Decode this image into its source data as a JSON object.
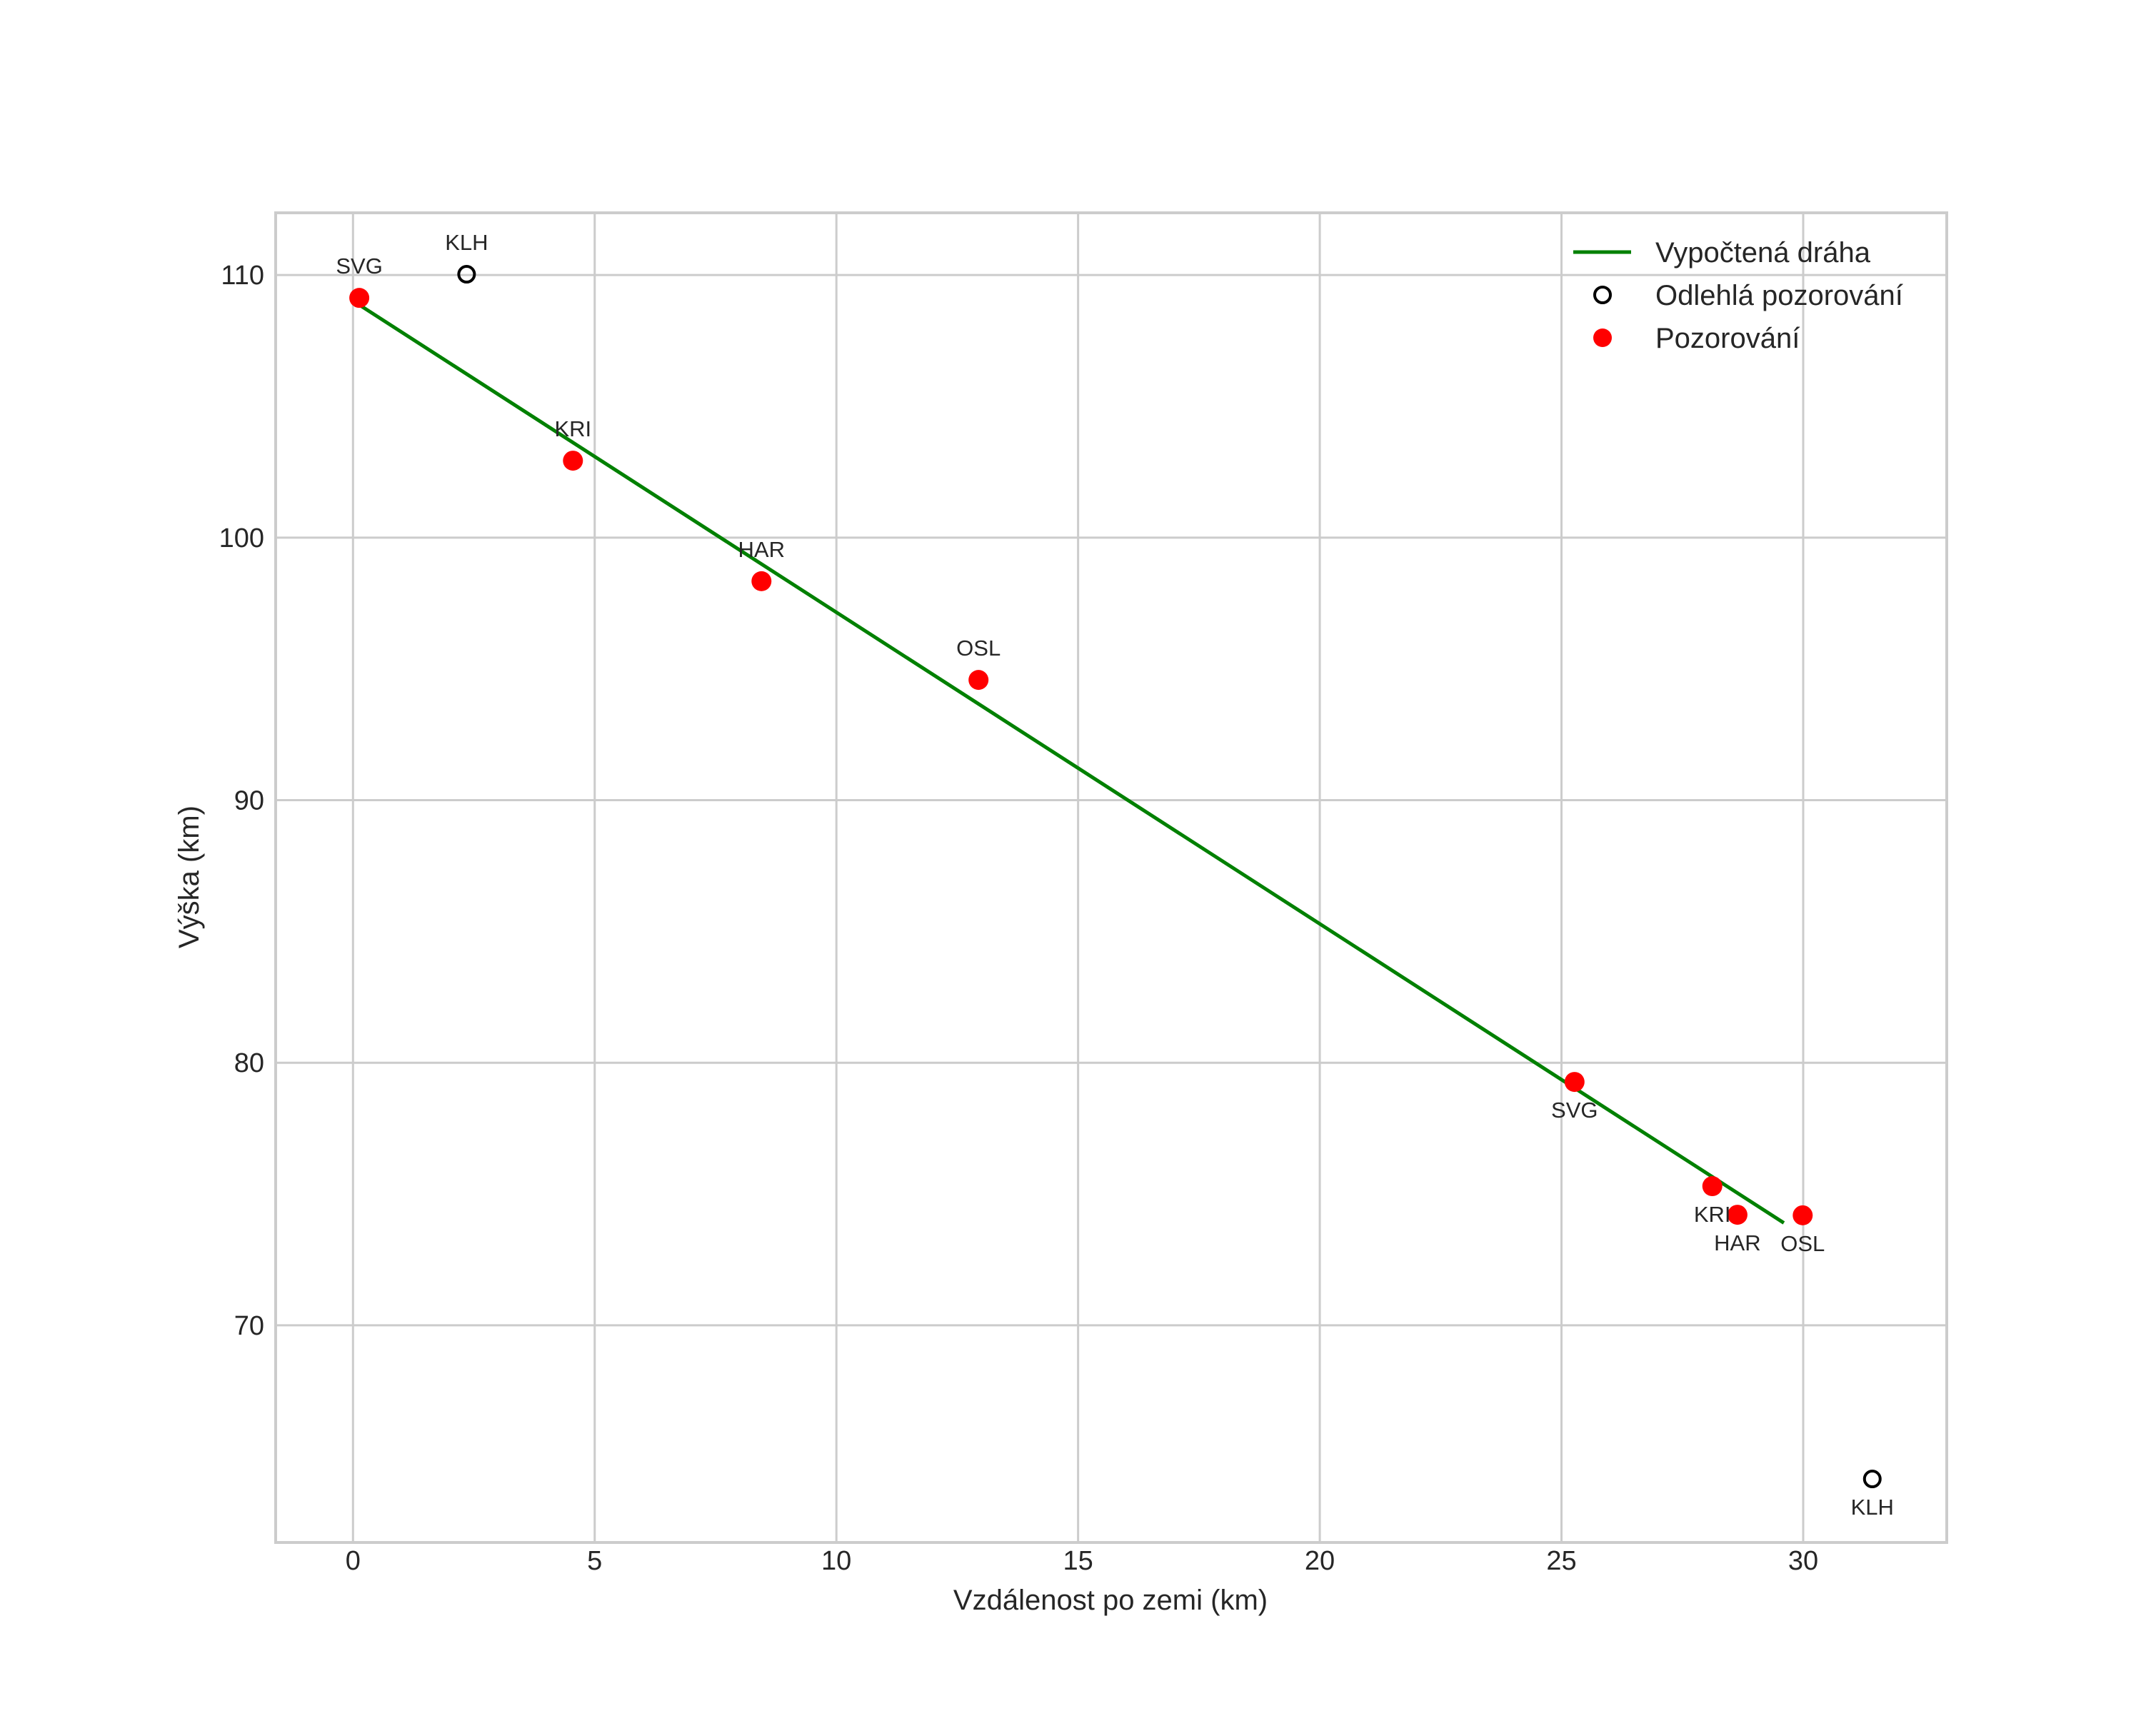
{
  "chart_data": {
    "type": "scatter",
    "title": "",
    "xlabel": "Vzdálenost po zemi (km)",
    "ylabel": "Výška (km)",
    "xlim": [
      -1.6,
      32.97
    ],
    "ylim": [
      61.73,
      112.37
    ],
    "xticks": [
      0,
      5,
      10,
      15,
      20,
      25,
      30
    ],
    "yticks": [
      70,
      80,
      90,
      100,
      110
    ],
    "grid": true,
    "legend_position": "upper right",
    "legend": [
      {
        "label": "Vypočtená dráha",
        "kind": "line",
        "color": "#008000"
      },
      {
        "label": "Odlehlá pozorování",
        "kind": "open-circle",
        "color": "#000000"
      },
      {
        "label": "Pozorování",
        "kind": "filled-circle",
        "color": "#ff0000"
      }
    ],
    "series": [
      {
        "name": "Vypočtená dráha",
        "type": "line",
        "color": "#008000",
        "points": [
          {
            "x": 0.1,
            "y": 108.9
          },
          {
            "x": 29.6,
            "y": 73.9
          }
        ]
      },
      {
        "name": "Odlehlá pozorování",
        "type": "scatter",
        "marker": "open-circle",
        "color": "#000000",
        "points": [
          {
            "label": "KLH",
            "x": 2.35,
            "y": 110.03,
            "label_pos": "above"
          },
          {
            "label": "KLH",
            "x": 31.43,
            "y": 64.15,
            "label_pos": "below"
          }
        ]
      },
      {
        "name": "Pozorování",
        "type": "scatter",
        "marker": "filled-circle",
        "color": "#ff0000",
        "points": [
          {
            "label": "SVG",
            "x": 0.13,
            "y": 109.13,
            "label_pos": "above"
          },
          {
            "label": "KRI",
            "x": 4.55,
            "y": 102.93,
            "label_pos": "above"
          },
          {
            "label": "HAR",
            "x": 8.45,
            "y": 98.34,
            "label_pos": "above"
          },
          {
            "label": "OSL",
            "x": 12.94,
            "y": 94.58,
            "label_pos": "above"
          },
          {
            "label": "SVG",
            "x": 25.27,
            "y": 79.27,
            "label_pos": "below"
          },
          {
            "label": "KRI",
            "x": 28.12,
            "y": 75.3,
            "label_pos": "below"
          },
          {
            "label": "HAR",
            "x": 28.64,
            "y": 74.21,
            "label_pos": "below"
          },
          {
            "label": "OSL",
            "x": 29.99,
            "y": 74.19,
            "label_pos": "below"
          }
        ]
      }
    ]
  },
  "axes": {
    "xlabel": "Vzdálenost po zemi (km)",
    "ylabel": "Výška (km)"
  },
  "legend": {
    "items": [
      {
        "label": "Vypočtená dráha"
      },
      {
        "label": "Odlehlá pozorování"
      },
      {
        "label": "Pozorování"
      }
    ]
  },
  "colors": {
    "grid": "#cccccc",
    "frame": "#cccccc",
    "text": "#262626",
    "trajectory": "#008000",
    "observation": "#ff0000",
    "outlier": "#000000"
  }
}
